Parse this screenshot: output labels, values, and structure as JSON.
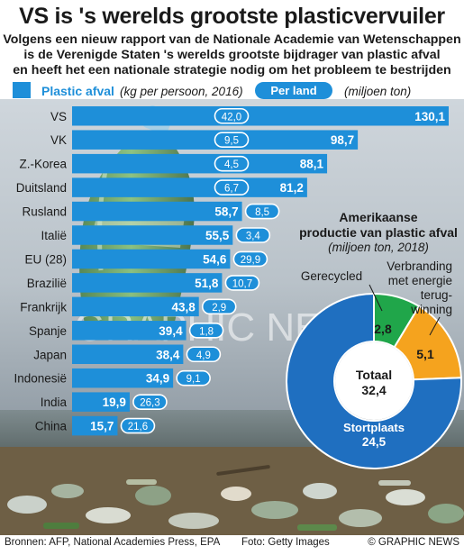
{
  "header": {
    "title": "VS is 's werelds grootste plasticvervuiler",
    "subtitle_lines": [
      "Volgens een nieuw rapport van de Nationale Academie van Wetenschappen",
      "is de Verenigde Staten 's werelds grootste bijdrager van plastic afval",
      "en heeft het een nationale strategie nodig om het probleem te bestrijden"
    ]
  },
  "legend": {
    "plastic_label": "Plastic afval",
    "plastic_unit": "(kg per persoon, 2016)",
    "country_label": "Per land",
    "country_unit": "(miljoen ton)"
  },
  "watermark": "GRAPHIC NEWS",
  "colors": {
    "bar_blue": "#1e8fd9",
    "donut_blue": "#1f6fc0",
    "donut_green": "#20a64a",
    "donut_orange": "#f5a31e",
    "pill_border": "#ffffff"
  },
  "chart_data": [
    {
      "type": "bar",
      "orientation": "horizontal",
      "categories": [
        "VS",
        "VK",
        "Z.-Korea",
        "Duitsland",
        "Rusland",
        "Italië",
        "EU (28)",
        "Brazilië",
        "Frankrijk",
        "Spanje",
        "Japan",
        "Indonesië",
        "India",
        "China"
      ],
      "series": [
        {
          "name": "Plastic afval",
          "unit": "(kg per persoon, 2016)",
          "values": [
            130.1,
            98.7,
            88.1,
            81.2,
            58.7,
            55.5,
            54.6,
            51.8,
            43.8,
            39.4,
            38.4,
            34.9,
            19.9,
            15.7
          ],
          "labels": [
            "130,1",
            "98,7",
            "88,1",
            "81,2",
            "58,7",
            "55,5",
            "54,6",
            "51,8",
            "43,8",
            "39,4",
            "38,4",
            "34,9",
            "19,9",
            "15,7"
          ]
        },
        {
          "name": "Per land",
          "unit": "(miljoen ton)",
          "values": [
            42.0,
            9.5,
            4.5,
            6.7,
            8.5,
            3.4,
            29.9,
            10.7,
            2.9,
            1.8,
            4.9,
            9.1,
            26.3,
            21.6
          ],
          "labels": [
            "42,0",
            "9,5",
            "4,5",
            "6,7",
            "8,5",
            "3,4",
            "29,9",
            "10,7",
            "2,9",
            "1,8",
            "4,9",
            "9,1",
            "26,3",
            "21,6"
          ]
        }
      ],
      "xlim": [
        0,
        130.1
      ]
    },
    {
      "type": "pie",
      "title": "Amerikaanse productie van plastic afval",
      "title_lines": [
        "Amerikaanse",
        "productie van plastic afval"
      ],
      "subtitle": "(miljoen ton, 2018)",
      "slices": [
        {
          "name": "Stortplaats",
          "value": 24.5,
          "label": "24,5",
          "color": "#1f6fc0"
        },
        {
          "name": "Gerecycled",
          "value": 2.8,
          "label": "2,8",
          "color": "#20a64a"
        },
        {
          "name": "Verbranding met energie terug-winning",
          "value": 5.1,
          "label": "5,1",
          "color": "#f5a31e"
        }
      ],
      "slice_name_lines": {
        "Gerecycled": [
          "Gerecycled"
        ],
        "Verbranding met energie terug-winning": [
          "Verbranding",
          "met energie",
          "terug-",
          "winning"
        ]
      },
      "total": {
        "label": "Totaal",
        "value": 32.4,
        "value_label": "32,4"
      }
    }
  ],
  "footer": {
    "sources": "Bronnen: AFP, National Academies Press, EPA",
    "photo": "Foto: Getty Images",
    "copyright": "© GRAPHIC NEWS"
  }
}
